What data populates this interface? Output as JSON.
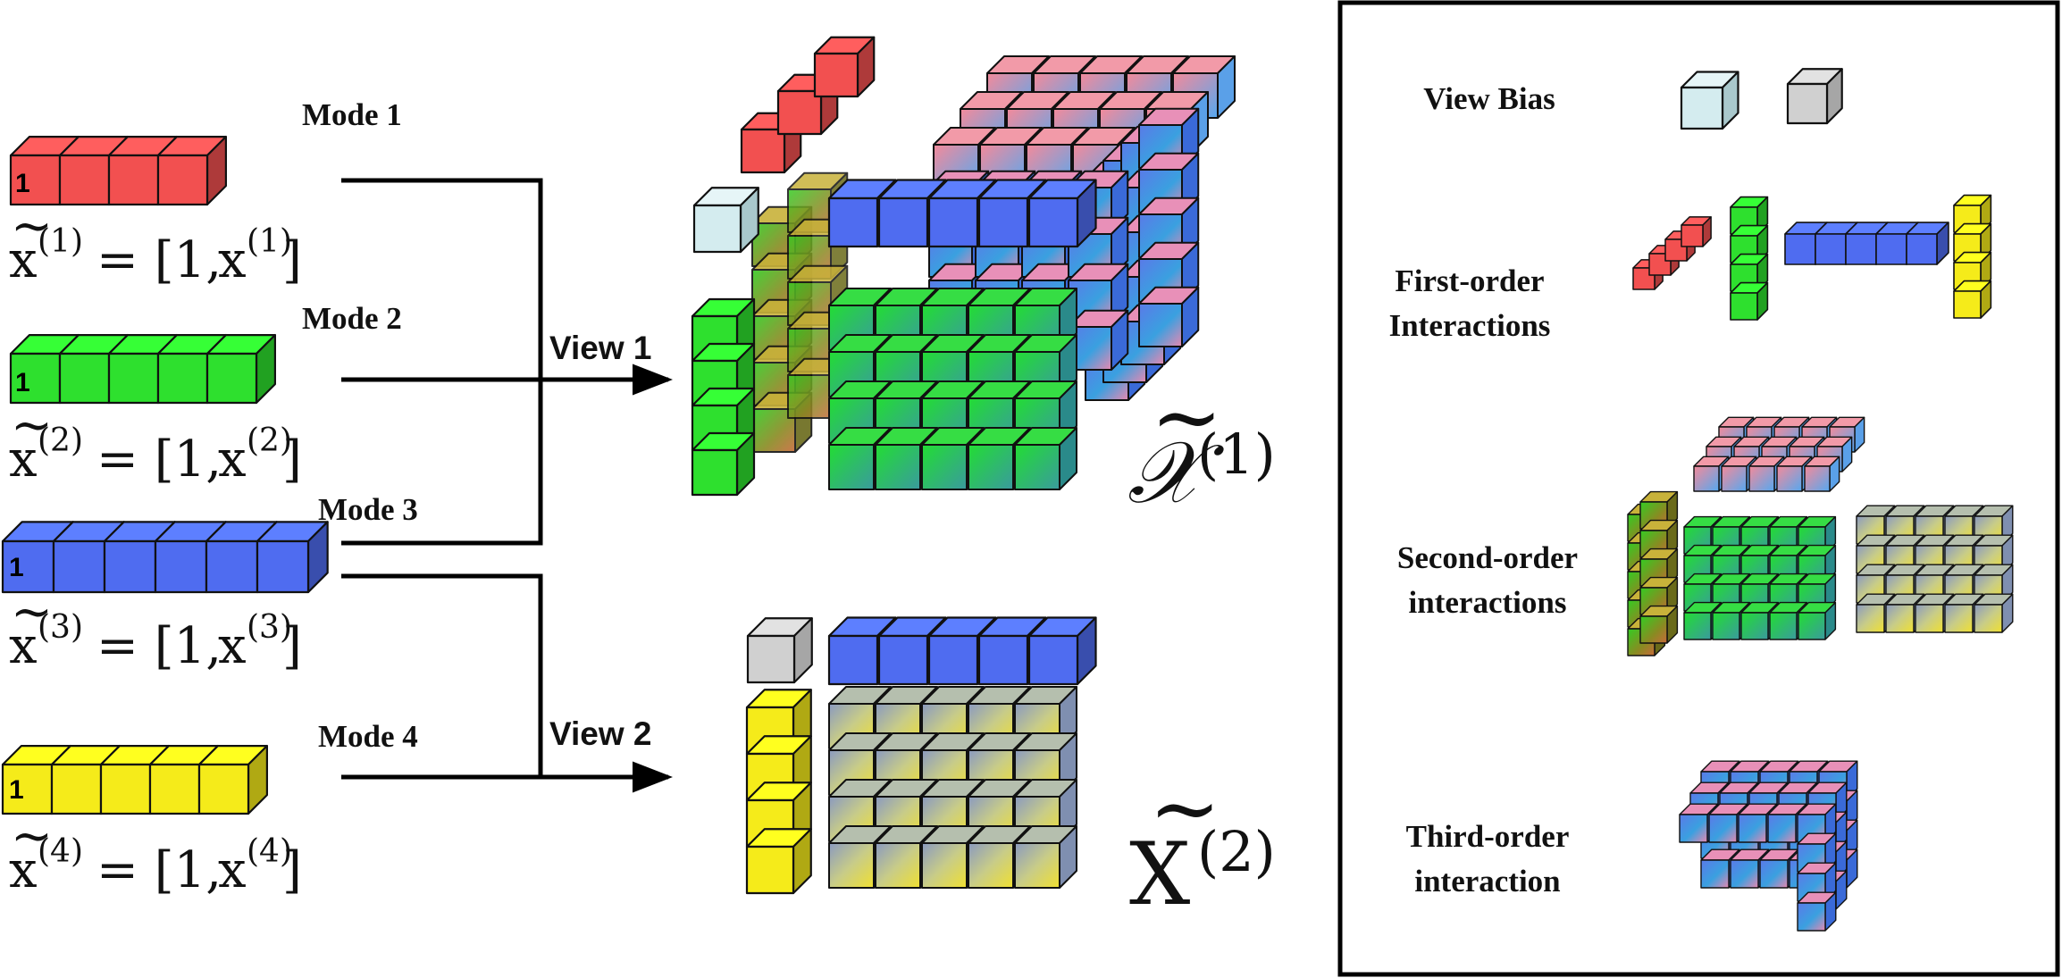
{
  "modes": [
    {
      "label": "Mode 1",
      "one": "1",
      "tilde": "~",
      "x": "x",
      "sup": "(1)",
      "eq": "= [1,",
      "x2": "x",
      "sup2": "(1)",
      "close": "]"
    },
    {
      "label": "Mode 2",
      "one": "1",
      "tilde": "~",
      "x": "x",
      "sup": "(2)",
      "eq": "= [1,",
      "x2": "x",
      "sup2": "(2)",
      "close": "]"
    },
    {
      "label": "Mode 3",
      "one": "1",
      "tilde": "~",
      "x": "x",
      "sup": "(3)",
      "eq": "= [1,",
      "x2": "x",
      "sup2": "(3)",
      "close": "]"
    },
    {
      "label": "Mode 4",
      "one": "1",
      "tilde": "~",
      "x": "x",
      "sup": "(4)",
      "eq": "= [1,",
      "x2": "x",
      "sup2": "(4)",
      "close": "]"
    }
  ],
  "views": {
    "view1": "View 1",
    "view2": "View 2"
  },
  "tensors": {
    "t1": {
      "symbol": "𝒳",
      "tilde": "~",
      "sup": "(1)"
    },
    "t2": {
      "symbol": "X",
      "tilde": "~",
      "sup": "(2)"
    }
  },
  "legend": {
    "view_bias": "View Bias",
    "first_order_1": "First-order",
    "first_order_2": "Interactions",
    "second_order_1": "Second-order",
    "second_order_2": "interactions",
    "third_order_1": "Third-order",
    "third_order_2": "interaction"
  },
  "colors": {
    "red": "#f25050",
    "green": "#2ee02e",
    "blue": "#4f6cf0",
    "yellow": "#f5eb1a",
    "view_bias_1": "#d4ecef",
    "view_bias_2": "#d0d0d0"
  }
}
